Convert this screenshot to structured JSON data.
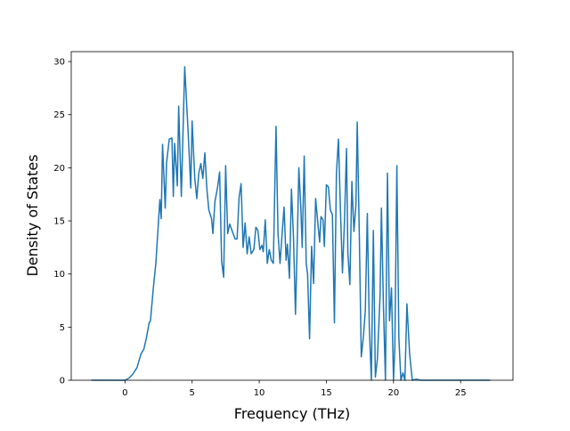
{
  "chart_data": {
    "type": "line",
    "xlabel": "Frequency (THz)",
    "ylabel": "Density of States",
    "x": [
      -2.5,
      0,
      0.3,
      0.6,
      0.9,
      1.2,
      1.4,
      1.6,
      1.8,
      1.9,
      2.1,
      2.3,
      2.5,
      2.6,
      2.7,
      2.8,
      3.0,
      3.1,
      3.3,
      3.5,
      3.6,
      3.7,
      3.9,
      4.0,
      4.2,
      4.45,
      4.7,
      4.9,
      5.0,
      5.2,
      5.35,
      5.5,
      5.65,
      5.8,
      5.95,
      6.1,
      6.25,
      6.45,
      6.55,
      6.7,
      6.9,
      7.05,
      7.2,
      7.35,
      7.5,
      7.65,
      7.8,
      8.0,
      8.2,
      8.35,
      8.5,
      8.65,
      8.8,
      8.95,
      9.1,
      9.25,
      9.4,
      9.6,
      9.75,
      9.9,
      10.05,
      10.2,
      10.3,
      10.45,
      10.6,
      10.75,
      10.9,
      11.05,
      11.25,
      11.4,
      11.55,
      11.7,
      11.85,
      12.0,
      12.1,
      12.25,
      12.4,
      12.55,
      12.7,
      12.85,
      12.95,
      13.1,
      13.2,
      13.35,
      13.5,
      13.6,
      13.75,
      13.9,
      14.05,
      14.2,
      14.35,
      14.5,
      14.6,
      14.75,
      14.85,
      15.0,
      15.15,
      15.3,
      15.45,
      15.6,
      15.75,
      15.9,
      16.05,
      16.2,
      16.35,
      16.5,
      16.6,
      16.75,
      16.9,
      17.05,
      17.2,
      17.3,
      17.45,
      17.6,
      17.75,
      17.9,
      18.05,
      18.2,
      18.35,
      18.5,
      18.65,
      18.8,
      19.0,
      19.1,
      19.25,
      19.4,
      19.55,
      19.7,
      19.85,
      20.0,
      20.1,
      20.25,
      20.4,
      20.55,
      20.7,
      20.85,
      21.0,
      21.2,
      21.4,
      21.7,
      22,
      27.2
    ],
    "series": [
      {
        "color": "#1f77b4",
        "values": [
          0,
          0,
          0.2,
          0.6,
          1.2,
          2.5,
          2.9,
          4.0,
          5.4,
          5.6,
          8.5,
          11,
          15,
          17,
          15.2,
          22.2,
          16.2,
          20.5,
          22.7,
          22.8,
          17.3,
          22.3,
          18.3,
          25.8,
          17.3,
          29.5,
          23.5,
          18.1,
          24.4,
          19,
          17.1,
          19.5,
          20.4,
          19,
          21.4,
          18,
          16,
          15.2,
          13.8,
          16.8,
          18.2,
          19.6,
          11.2,
          9.7,
          20.2,
          13.8,
          14.7,
          14.0,
          13.3,
          13.3,
          17.2,
          18.5,
          12.5,
          14.8,
          11.9,
          13.5,
          11.9,
          12.3,
          14.4,
          14.1,
          12.3,
          12.7,
          12.1,
          15.1,
          11,
          12.3,
          11.3,
          11,
          23.9,
          13.8,
          11,
          13.7,
          16.3,
          11.3,
          12.8,
          9.6,
          18,
          13.5,
          6.2,
          14,
          20.0,
          16.2,
          12.5,
          21.1,
          11,
          10,
          3.9,
          12.6,
          9.1,
          17.1,
          15,
          13,
          15.4,
          15.1,
          12.6,
          18.4,
          18.2,
          16,
          15.6,
          5.4,
          19.5,
          22.7,
          16,
          10.1,
          15,
          21.8,
          12,
          9,
          18.7,
          14,
          16.5,
          24.3,
          14,
          2.2,
          4,
          6.5,
          15.7,
          5,
          0,
          14.1,
          0.3,
          2,
          8,
          16.2,
          7,
          0,
          19.5,
          5.6,
          8.7,
          0,
          3,
          20.2,
          4,
          0,
          0.7,
          0,
          7.2,
          2.5,
          0,
          0.1,
          0,
          0
        ]
      }
    ],
    "xlim": [
      -4.0,
      28.9
    ],
    "ylim": [
      0,
      30.93
    ],
    "xticks": [
      0,
      5,
      10,
      15,
      20,
      25
    ],
    "yticks": [
      0,
      5,
      10,
      15,
      20,
      25,
      30
    ]
  }
}
